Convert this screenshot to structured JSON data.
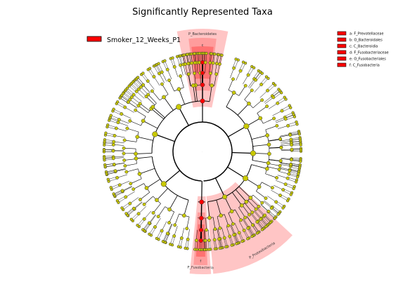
{
  "title": "Significantly Represented Taxa",
  "group_legend": {
    "label": "Smoker_12_Weeks_P1",
    "color": "#ff0000"
  },
  "taxa_key": [
    {
      "letter": "a",
      "text": "a: F_Prevotellaceae"
    },
    {
      "letter": "b",
      "text": "b: O_Bacteroidales"
    },
    {
      "letter": "c",
      "text": "c: C_Bacteroidia"
    },
    {
      "letter": "d",
      "text": "d: F_Fusobacteriaceae"
    },
    {
      "letter": "e",
      "text": "e: O_Fusobacteriales"
    },
    {
      "letter": "f",
      "text": "f: C_Fusobacteria"
    }
  ],
  "clade_labels": {
    "bacteroidetes": "P_Bacteroidetes",
    "proteobacteria": "P_Proteobacteria",
    "fusobacteria": "P_Fusobacteria"
  },
  "colors": {
    "enriched_node": "#ff0000",
    "normal_node": "#c8c800",
    "highlight_light": "#ffbbbb",
    "highlight_mid": "#ff9494",
    "highlight_dark": "#ff6a6a"
  }
}
